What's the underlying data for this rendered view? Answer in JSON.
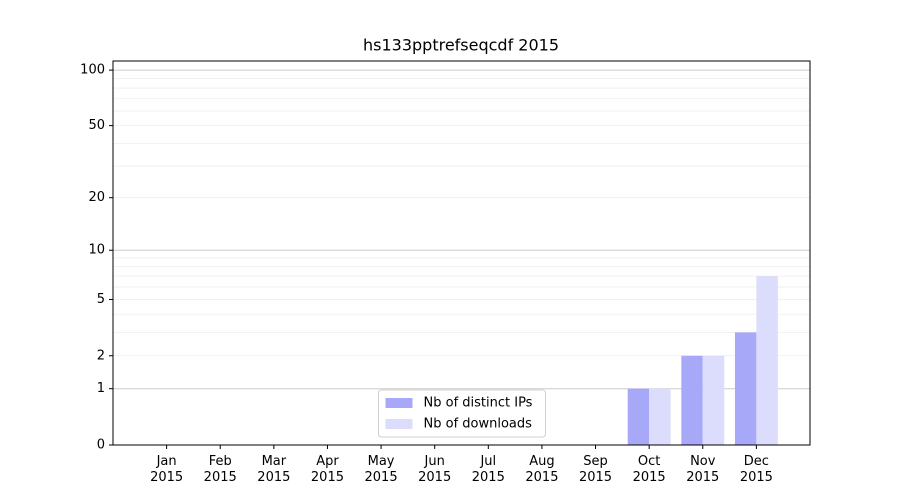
{
  "chart_data": {
    "type": "bar",
    "title": "hs133pptrefseqcdf 2015",
    "categories": [
      "Jan 2015",
      "Feb 2015",
      "Mar 2015",
      "Apr 2015",
      "May 2015",
      "Jun 2015",
      "Jul 2015",
      "Aug 2015",
      "Sep 2015",
      "Oct 2015",
      "Nov 2015",
      "Dec 2015"
    ],
    "series": [
      {
        "name": "Nb of distinct IPs",
        "color": "#a8a8f8",
        "values": [
          0,
          0,
          0,
          0,
          0,
          0,
          0,
          0,
          0,
          1,
          2,
          3
        ]
      },
      {
        "name": "Nb of downloads",
        "color": "#dcdcfc",
        "values": [
          0,
          0,
          0,
          0,
          0,
          0,
          0,
          0,
          0,
          1,
          2,
          7
        ]
      }
    ],
    "yscale": "log1p",
    "ylim": [
      0,
      112
    ],
    "yticks": [
      0,
      1,
      2,
      5,
      10,
      20,
      50,
      100
    ],
    "major_grid": [
      1,
      10,
      100
    ],
    "minor_grid": [
      2,
      3,
      4,
      5,
      6,
      7,
      8,
      9,
      20,
      30,
      40,
      50,
      60,
      70,
      80,
      90
    ],
    "grid": true,
    "legend": "lower center"
  }
}
